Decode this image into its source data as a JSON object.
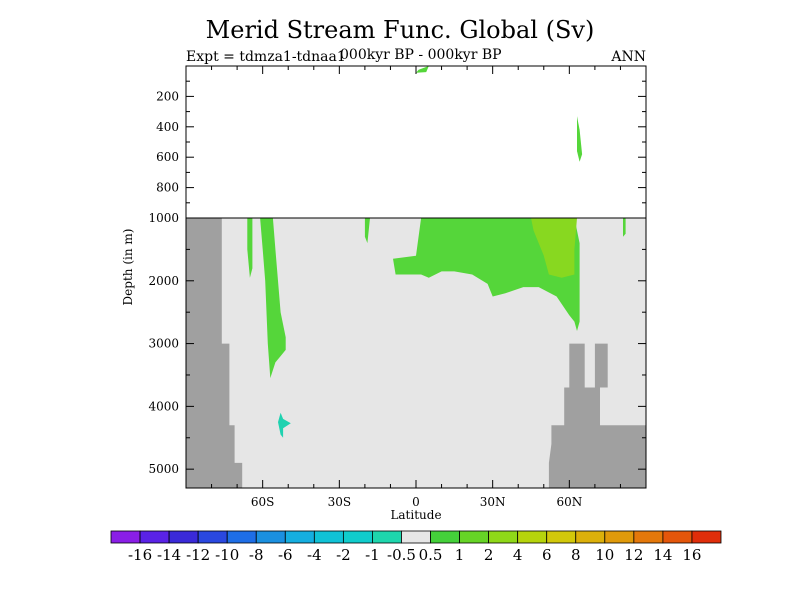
{
  "title": "Merid Stream Func. Global (Sv)",
  "subtitle_left": "Expt = tdmza1-tdnaa1",
  "subtitle_center": "000kyr BP - 000kyr BP",
  "subtitle_right": "ANN",
  "colors": {
    "ocean_background": "#e6e6e6",
    "land_mask": "#a0a0a0",
    "green_1_2": "#55d63a",
    "green_2_4": "#88d820",
    "cyan_neg": "#1fd2b0"
  },
  "chart_data": {
    "type": "heatmap",
    "xlabel": "Latitude",
    "ylabel": "Depth (in m)",
    "xlim": [
      -90,
      90
    ],
    "ylim_upper": [
      0,
      1000
    ],
    "ylim_lower": [
      1000,
      5300
    ],
    "x_ticks": [
      {
        "value": -60,
        "label": "60S"
      },
      {
        "value": -30,
        "label": "30S"
      },
      {
        "value": 0,
        "label": "0"
      },
      {
        "value": 30,
        "label": "30N"
      },
      {
        "value": 60,
        "label": "60N"
      }
    ],
    "y_ticks_upper": [
      {
        "value": 200,
        "label": "200"
      },
      {
        "value": 400,
        "label": "400"
      },
      {
        "value": 600,
        "label": "600"
      },
      {
        "value": 800,
        "label": "800"
      },
      {
        "value": 1000,
        "label": "1000"
      }
    ],
    "y_ticks_lower": [
      {
        "value": 2000,
        "label": "2000"
      },
      {
        "value": 3000,
        "label": "3000"
      },
      {
        "value": 4000,
        "label": "4000"
      },
      {
        "value": 5000,
        "label": "5000"
      }
    ],
    "colorbar": {
      "labels": [
        "-16",
        "-14",
        "-12",
        "-10",
        "-8",
        "-6",
        "-4",
        "-2",
        "-1",
        "-0.5",
        "0.5",
        "1",
        "2",
        "4",
        "6",
        "8",
        "10",
        "12",
        "14",
        "16"
      ],
      "colors": [
        "#8a1ee6",
        "#5a22e6",
        "#3a2ad8",
        "#2a48e0",
        "#1e6ee6",
        "#1b90e0",
        "#15aee0",
        "#10c2d6",
        "#10cccc",
        "#1ed6ad",
        "#e6e6e6",
        "#44d03a",
        "#66d426",
        "#8fd818",
        "#b6d40c",
        "#d2c80a",
        "#dcb00a",
        "#e09a0a",
        "#e4780a",
        "#e4560a",
        "#e02e0a"
      ]
    },
    "regions": [
      {
        "name": "upper-tropical-cell",
        "level": "1 to 2",
        "points": [
          [
            1,
            25
          ],
          [
            5,
            0
          ],
          [
            4,
            40
          ],
          [
            0,
            45
          ]
        ]
      },
      {
        "name": "upper-60n-cell",
        "level": "1 to 2",
        "points": [
          [
            63,
            330
          ],
          [
            64,
            420
          ],
          [
            65,
            580
          ],
          [
            64,
            630
          ],
          [
            63,
            560
          ]
        ]
      },
      {
        "name": "south-ocean-cell",
        "level": "1 to 2",
        "points": [
          [
            -61,
            1000
          ],
          [
            -56,
            1000
          ],
          [
            -55,
            1500
          ],
          [
            -53,
            2500
          ],
          [
            -51,
            2900
          ],
          [
            -51,
            3100
          ],
          [
            -53,
            3200
          ],
          [
            -55,
            3300
          ],
          [
            -57,
            3550
          ],
          [
            -58,
            3000
          ],
          [
            -59,
            2000
          ],
          [
            -60,
            1500
          ]
        ]
      },
      {
        "name": "south-ocean-thin",
        "level": "1 to 2",
        "points": [
          [
            -66,
            1000
          ],
          [
            -64,
            1000
          ],
          [
            -64,
            1800
          ],
          [
            -65,
            1950
          ],
          [
            -66,
            1500
          ]
        ]
      },
      {
        "name": "south-15s-cell",
        "level": "1 to 2",
        "points": [
          [
            -20,
            1000
          ],
          [
            -18,
            1000
          ],
          [
            -19,
            1400
          ],
          [
            -20,
            1300
          ]
        ]
      },
      {
        "name": "north-deep-cell",
        "level": "1 to 2",
        "points": [
          [
            2,
            1000
          ],
          [
            45,
            1000
          ],
          [
            46,
            1000
          ],
          [
            50,
            1000
          ],
          [
            62,
            1000
          ],
          [
            64,
            1400
          ],
          [
            64,
            1800
          ],
          [
            64,
            2200
          ],
          [
            64,
            2650
          ],
          [
            63,
            2800
          ],
          [
            62,
            2650
          ],
          [
            60,
            2550
          ],
          [
            55,
            2250
          ],
          [
            48,
            2100
          ],
          [
            42,
            2100
          ],
          [
            35,
            2200
          ],
          [
            30,
            2250
          ],
          [
            28,
            2050
          ],
          [
            22,
            1900
          ],
          [
            15,
            1850
          ],
          [
            10,
            1850
          ],
          [
            5,
            1950
          ],
          [
            2,
            1900
          ],
          [
            -8,
            1900
          ],
          [
            -9,
            1650
          ],
          [
            0,
            1600
          ]
        ]
      },
      {
        "name": "north-2to4-cell",
        "level": "2 to 4",
        "points": [
          [
            45,
            1000
          ],
          [
            63,
            1000
          ],
          [
            62,
            1500
          ],
          [
            62,
            1900
          ],
          [
            57,
            1950
          ],
          [
            52,
            1900
          ],
          [
            50,
            1600
          ],
          [
            46,
            1200
          ]
        ]
      },
      {
        "name": "far-north-sliver",
        "level": "1 to 2",
        "points": [
          [
            81,
            1000
          ],
          [
            82,
            1000
          ],
          [
            82,
            1250
          ],
          [
            81,
            1300
          ]
        ]
      },
      {
        "name": "cyan-deep-blob",
        "level": "-1 to -0.5",
        "points": [
          [
            -53,
            4100
          ],
          [
            -52,
            4200
          ],
          [
            -49,
            4270
          ],
          [
            -52,
            4350
          ],
          [
            -52,
            4500
          ],
          [
            -53,
            4450
          ],
          [
            -54,
            4250
          ]
        ]
      }
    ],
    "land_mask": [
      {
        "name": "antarctic-mask",
        "points": [
          [
            -90,
            1000
          ],
          [
            -76,
            1000
          ],
          [
            -76,
            3000
          ],
          [
            -73,
            3000
          ],
          [
            -73,
            4300
          ],
          [
            -71,
            4300
          ],
          [
            -71,
            4900
          ],
          [
            -68,
            4900
          ],
          [
            -68,
            5300
          ],
          [
            -90,
            5300
          ]
        ]
      },
      {
        "name": "arctic-mask",
        "points": [
          [
            90,
            5300
          ],
          [
            52,
            5300
          ],
          [
            52,
            4900
          ],
          [
            53,
            4600
          ],
          [
            53,
            4300
          ],
          [
            58,
            4300
          ],
          [
            58,
            3700
          ],
          [
            60,
            3700
          ],
          [
            60,
            3000
          ],
          [
            66,
            3000
          ],
          [
            66,
            3700
          ],
          [
            70,
            3700
          ],
          [
            70,
            3000
          ],
          [
            75,
            3000
          ],
          [
            75,
            3700
          ],
          [
            72,
            3700
          ],
          [
            72,
            4300
          ],
          [
            90,
            4300
          ]
        ]
      }
    ]
  }
}
